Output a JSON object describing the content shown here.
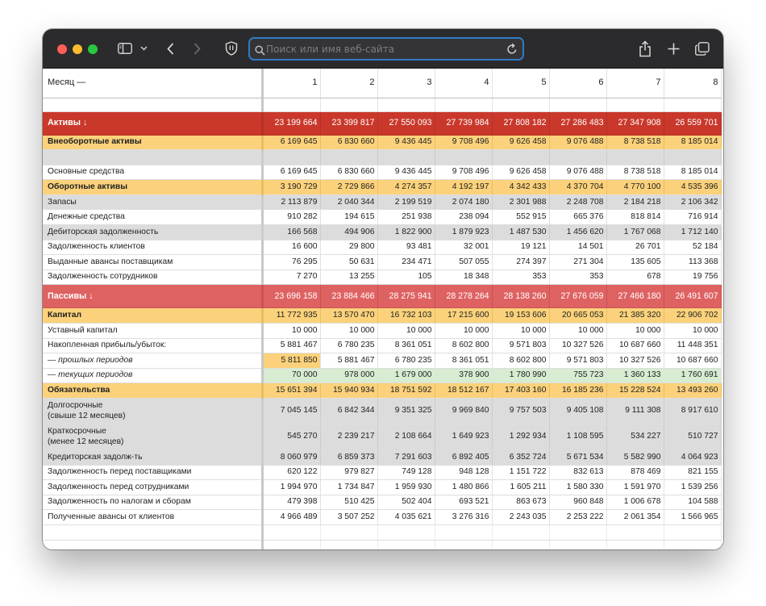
{
  "browser": {
    "address_placeholder": "Поиск или имя веб-сайта"
  },
  "sheet": {
    "header_label": "Месяц —",
    "months": [
      "1",
      "2",
      "3",
      "4",
      "5",
      "6",
      "7",
      "8"
    ],
    "rows": [
      {
        "label": "Активы ↓",
        "style": "sec s1",
        "values": [
          "23 199 664",
          "23 399 817",
          "27 550 093",
          "27 739 984",
          "27 808 182",
          "27 286 483",
          "27 347 908",
          "26 559 701"
        ]
      },
      {
        "label": "Внеоборотные активы",
        "style": "grp",
        "values": [
          "6 169 645",
          "6 830 660",
          "9 436 445",
          "9 708 496",
          "9 626 458",
          "9 076 488",
          "8 738 518",
          "8 185 014"
        ]
      },
      {
        "label": "",
        "style": "grey",
        "values": [
          "",
          "",
          "",
          "",
          "",
          "",
          "",
          ""
        ]
      },
      {
        "label": "Основные средства",
        "style": "",
        "values": [
          "6 169 645",
          "6 830 660",
          "9 436 445",
          "9 708 496",
          "9 626 458",
          "9 076 488",
          "8 738 518",
          "8 185 014"
        ]
      },
      {
        "label": "Оборотные активы",
        "style": "grp",
        "values": [
          "3 190 729",
          "2 729 866",
          "4 274 357",
          "4 192 197",
          "4 342 433",
          "4 370 704",
          "4 770 100",
          "4 535 396"
        ]
      },
      {
        "label": "Запасы",
        "style": "grey",
        "values": [
          "2 113 879",
          "2 040 344",
          "2 199 519",
          "2 074 180",
          "2 301 988",
          "2 248 708",
          "2 184 218",
          "2 106 342"
        ]
      },
      {
        "label": "Денежные средства",
        "style": "",
        "values": [
          "910 282",
          "194 615",
          "251 938",
          "238 094",
          "552 915",
          "665 376",
          "818 814",
          "716 914"
        ]
      },
      {
        "label": "Дебиторская задолженность",
        "style": "grey",
        "values": [
          "166 568",
          "494 906",
          "1 822 900",
          "1 879 923",
          "1 487 530",
          "1 456 620",
          "1 767 068",
          "1 712 140"
        ]
      },
      {
        "label": "Задолженность клиентов",
        "style": "",
        "values": [
          "16 600",
          "29 800",
          "93 481",
          "32 001",
          "19 121",
          "14 501",
          "26 701",
          "52 184"
        ]
      },
      {
        "label": "Выданные авансы поставщикам",
        "style": "",
        "values": [
          "76 295",
          "50 631",
          "234 471",
          "507 055",
          "274 397",
          "271 304",
          "135 605",
          "113 368"
        ]
      },
      {
        "label": "Задолженность сотрудников",
        "style": "",
        "values": [
          "7 270",
          "13 255",
          "105",
          "18 348",
          "353",
          "353",
          "678",
          "19 756"
        ]
      },
      {
        "label": "Пассивы ↓",
        "style": "sec s2",
        "values": [
          "23 696 158",
          "23 884 466",
          "28 275 941",
          "28 278 264",
          "28 138 260",
          "27 676 059",
          "27 466 180",
          "26 491 607"
        ]
      },
      {
        "label": "Капитал",
        "style": "grp",
        "values": [
          "11 772 935",
          "13 570 470",
          "16 732 103",
          "17 215 600",
          "19 153 606",
          "20 665 053",
          "21 385 320",
          "22 906 702"
        ]
      },
      {
        "label": "Уставный капитал",
        "style": "",
        "values": [
          "10 000",
          "10 000",
          "10 000",
          "10 000",
          "10 000",
          "10 000",
          "10 000",
          "10 000"
        ]
      },
      {
        "label": "Накопленная прибыль/убыток:",
        "style": "",
        "values": [
          "5 881 467",
          "6 780 235",
          "8 361 051",
          "8 602 800",
          "9 571 803",
          "10 327 526",
          "10 687 660",
          "11 448 351"
        ]
      },
      {
        "label": "— прошлых периодов",
        "style": "it",
        "values": [
          "5 811 850",
          "5 881 467",
          "6 780 235",
          "8 361 051",
          "8 602 800",
          "9 571 803",
          "10 327 526",
          "10 687 660"
        ]
      },
      {
        "label": "— текущих периодов",
        "style": "it",
        "values": [
          "70 000",
          "978 000",
          "1 679 000",
          "378 900",
          "1 780 990",
          "755 723",
          "1 360 133",
          "1 760 691"
        ]
      },
      {
        "label": "Обязательства",
        "style": "grp",
        "values": [
          "15 651 394",
          "15 940 934",
          "18 751 592",
          "18 512 167",
          "17 403 160",
          "16 185 236",
          "15 228 524",
          "13 493 260"
        ]
      },
      {
        "label": "Долгосрочные",
        "label2": "(свыше 12 месяцев)",
        "style": "grey tall",
        "values": [
          "7 045 145",
          "6 842 344",
          "9 351 325",
          "9 969 840",
          "9 757 503",
          "9 405 108",
          "9 111 308",
          "8 917 610"
        ]
      },
      {
        "label": "Краткосрочные",
        "label2": "(менее 12 месяцев)",
        "style": "grey tall",
        "values": [
          "545 270",
          "2 239 217",
          "2 108 664",
          "1 649 923",
          "1 292 934",
          "1 108 595",
          "534 227",
          "510 727"
        ]
      },
      {
        "label": "Кредиторская задолж-ть",
        "style": "grey",
        "values": [
          "8 060 979",
          "6 859 373",
          "7 291 603",
          "6 892 405",
          "6 352 724",
          "5 671 534",
          "5 582 990",
          "4 064 923"
        ]
      },
      {
        "label": "Задолженность перед поставщиками",
        "style": "",
        "values": [
          "620 122",
          "979 827",
          "749 128",
          "948 128",
          "1 151 722",
          "832 613",
          "878 469",
          "821 155"
        ]
      },
      {
        "label": "Задолженность перед сотрудниками",
        "style": "",
        "values": [
          "1 994 970",
          "1 734 847",
          "1 959 930",
          "1 480 866",
          "1 605 211",
          "1 580 330",
          "1 591 970",
          "1 539 256"
        ]
      },
      {
        "label": "Задолженность по налогам и сборам",
        "style": "",
        "values": [
          "479 398",
          "510 425",
          "502 404",
          "693 521",
          "863 673",
          "960 848",
          "1 006 678",
          "104 588"
        ]
      },
      {
        "label": "Полученные авансы от клиентов",
        "style": "",
        "values": [
          "4 966 489",
          "3 507 252",
          "4 035 621",
          "3 276 316",
          "2 243 035",
          "2 253 222",
          "2 061 354",
          "1 566 965"
        ]
      }
    ]
  },
  "colors": {
    "assets_header": "#c9382b",
    "liabilities_header": "#df6262",
    "group_highlight": "#fbd27b",
    "current_period_highlight": "#d7ecd1",
    "url_focus_ring": "#2f7bc4"
  },
  "icons": [
    "sidebar-icon",
    "chevron-down-icon",
    "back-icon",
    "forward-icon",
    "shield-icon",
    "search-icon",
    "reload-icon",
    "share-icon",
    "plus-icon",
    "tabs-overview-icon"
  ]
}
